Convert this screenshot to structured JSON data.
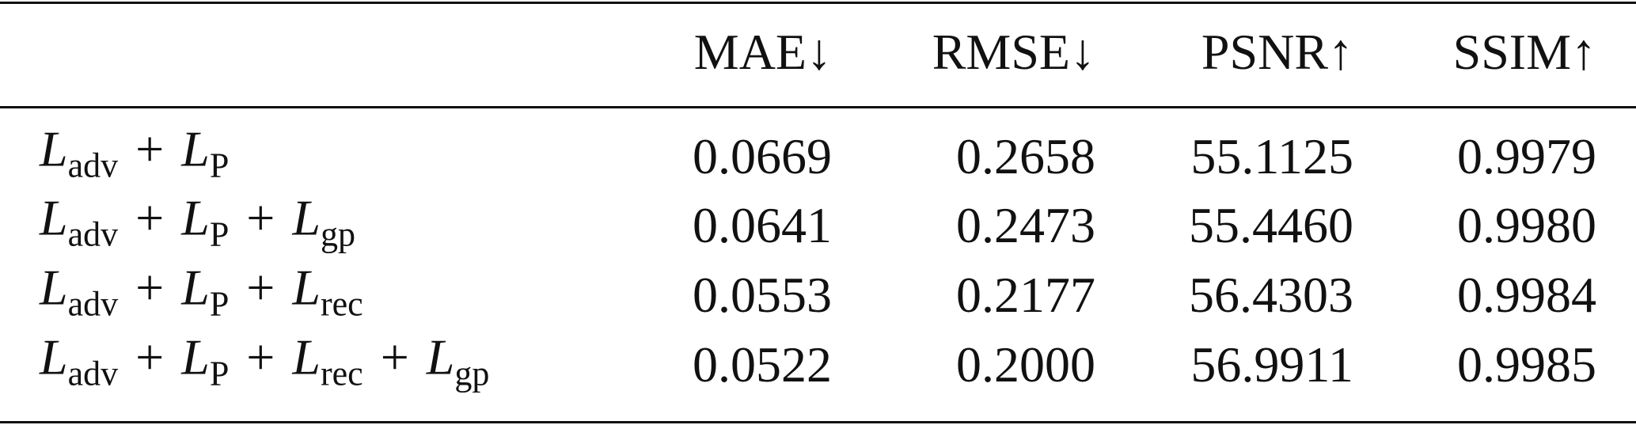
{
  "table": {
    "columns": [
      "MAE↓",
      "RMSE↓",
      "PSNR↑",
      "SSIM↑"
    ],
    "rows": [
      {
        "label": [
          {
            "symbol": "L",
            "sub": "adv"
          },
          "+",
          {
            "symbol": "L",
            "sub": "P"
          }
        ],
        "cells": [
          "0.0669",
          "0.2658",
          "55.1125",
          "0.9979"
        ]
      },
      {
        "label": [
          {
            "symbol": "L",
            "sub": "adv"
          },
          "+",
          {
            "symbol": "L",
            "sub": "P"
          },
          "+",
          {
            "symbol": "L",
            "sub": "gp"
          }
        ],
        "cells": [
          "0.0641",
          "0.2473",
          "55.4460",
          "0.9980"
        ]
      },
      {
        "label": [
          {
            "symbol": "L",
            "sub": "adv"
          },
          "+",
          {
            "symbol": "L",
            "sub": "P"
          },
          "+",
          {
            "symbol": "L",
            "sub": "rec"
          }
        ],
        "cells": [
          "0.0553",
          "0.2177",
          "56.4303",
          "0.9984"
        ]
      },
      {
        "label": [
          {
            "symbol": "L",
            "sub": "adv"
          },
          "+",
          {
            "symbol": "L",
            "sub": "P"
          },
          "+",
          {
            "symbol": "L",
            "sub": "rec"
          },
          "+",
          {
            "symbol": "L",
            "sub": "gp"
          }
        ],
        "cells": [
          "0.0522",
          "0.2000",
          "56.9911",
          "0.9985"
        ]
      }
    ]
  }
}
